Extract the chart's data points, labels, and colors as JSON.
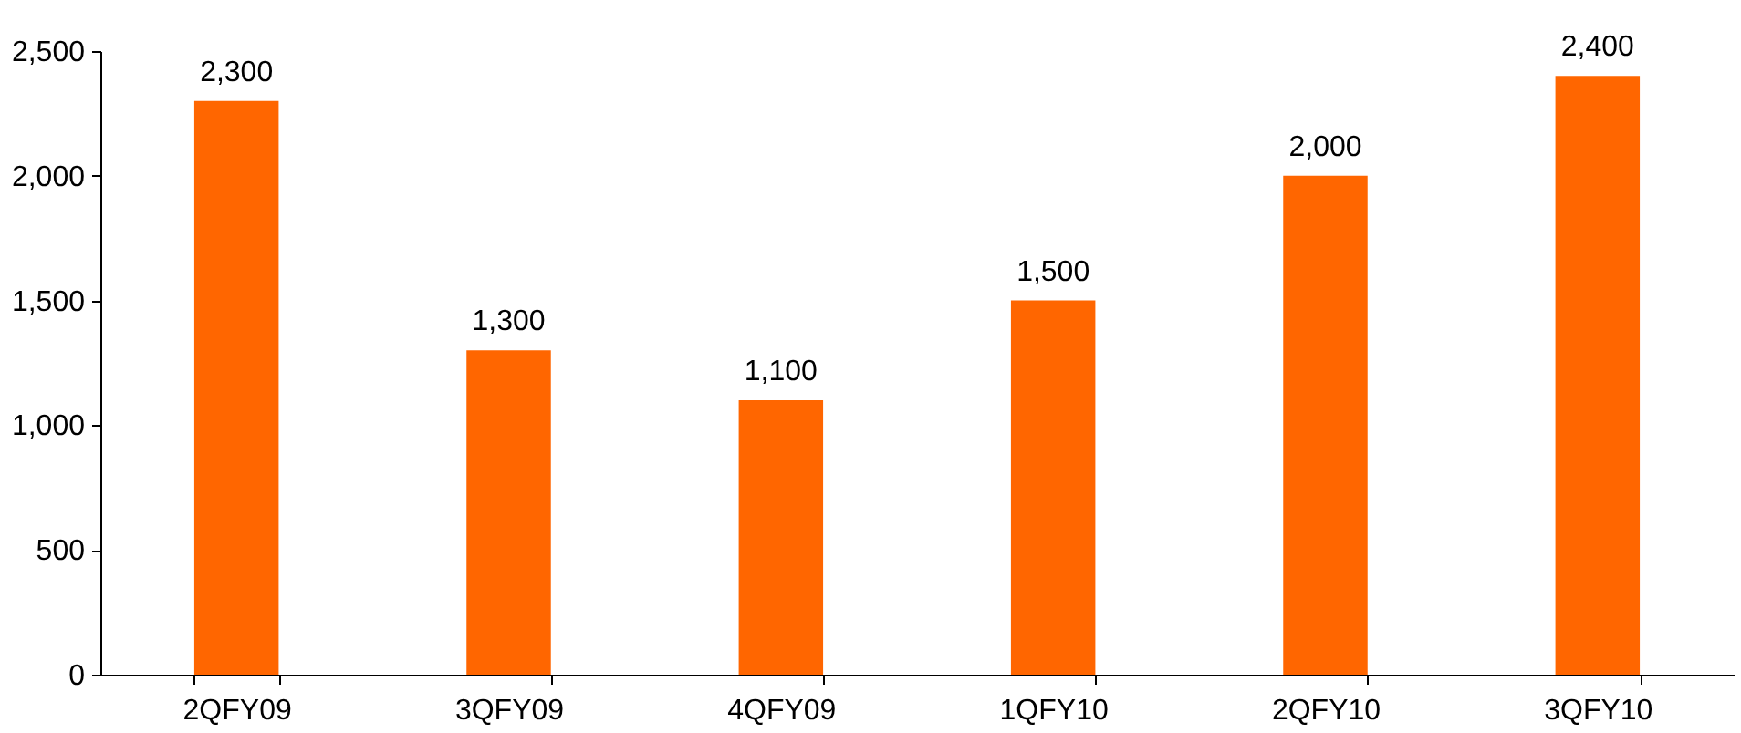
{
  "chart_data": {
    "type": "bar",
    "categories": [
      "2QFY09",
      "3QFY09",
      "4QFY09",
      "1QFY10",
      "2QFY10",
      "3QFY10"
    ],
    "values": [
      2300,
      1300,
      1100,
      1500,
      2000,
      2400
    ],
    "color": "#ff6600",
    "ylim": [
      0,
      2500
    ],
    "yticks": [
      {
        "value": 0,
        "label": "0"
      },
      {
        "value": 500,
        "label": "500"
      },
      {
        "value": 1000,
        "label": "1,000"
      },
      {
        "value": 1500,
        "label": "1,500"
      },
      {
        "value": 2000,
        "label": "2,000"
      },
      {
        "value": 2500,
        "label": "2,500"
      }
    ],
    "grid": false,
    "value_labels": [
      "2,300",
      "1,300",
      "1,100",
      "1,500",
      "2,000",
      "2,400"
    ]
  }
}
